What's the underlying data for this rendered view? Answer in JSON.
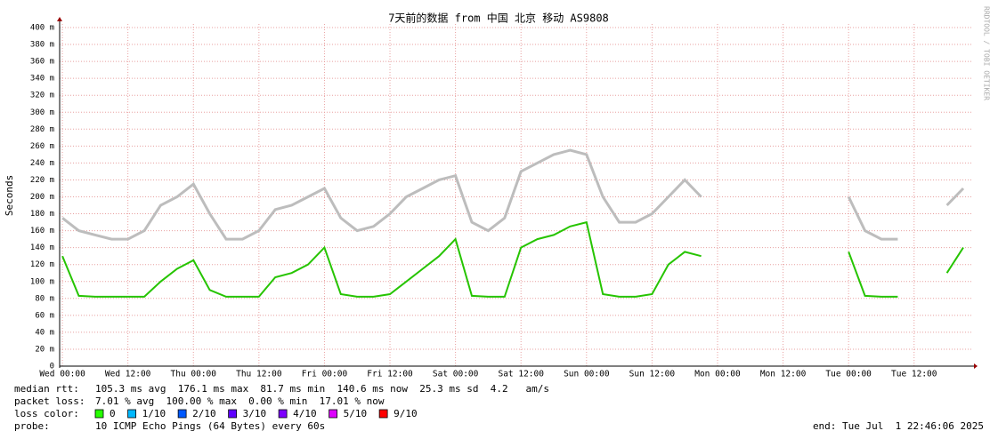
{
  "chart_data": {
    "type": "line",
    "title": "7天前的数据 from 中国 北京 移动 AS9808",
    "watermark": "RRDTOOL / TOBI OETIKER",
    "y_label": "Seconds",
    "ylim": [
      0,
      400
    ],
    "yticks": [
      0,
      {
        "value": 20,
        "label": "20 m"
      },
      {
        "value": 40,
        "label": "40 m"
      },
      {
        "value": 60,
        "label": "60 m"
      },
      {
        "value": 80,
        "label": "80 m"
      },
      {
        "value": 100,
        "label": "100 m"
      },
      {
        "value": 120,
        "label": "120 m"
      },
      {
        "value": 140,
        "label": "140 m"
      },
      {
        "value": 160,
        "label": "160 m"
      },
      {
        "value": 180,
        "label": "180 m"
      },
      {
        "value": 200,
        "label": "200 m"
      },
      {
        "value": 220,
        "label": "220 m"
      },
      {
        "value": 240,
        "label": "240 m"
      },
      {
        "value": 260,
        "label": "260 m"
      },
      {
        "value": 280,
        "label": "280 m"
      },
      {
        "value": 300,
        "label": "300 m"
      },
      {
        "value": 320,
        "label": "320 m"
      },
      {
        "value": 340,
        "label": "340 m"
      },
      {
        "value": 360,
        "label": "360 m"
      },
      {
        "value": 380,
        "label": "380 m"
      },
      {
        "value": 400,
        "label": "400 m"
      }
    ],
    "xlim": [
      -0.5,
      166.8
    ],
    "xticks": [
      {
        "value": 0,
        "label": "Wed 00:00"
      },
      {
        "value": 12,
        "label": "Wed 12:00"
      },
      {
        "value": 24,
        "label": "Thu 00:00"
      },
      {
        "value": 36,
        "label": "Thu 12:00"
      },
      {
        "value": 48,
        "label": "Fri 00:00"
      },
      {
        "value": 60,
        "label": "Fri 12:00"
      },
      {
        "value": 72,
        "label": "Sat 00:00"
      },
      {
        "value": 84,
        "label": "Sat 12:00"
      },
      {
        "value": 96,
        "label": "Sun 00:00"
      },
      {
        "value": 108,
        "label": "Sun 12:00"
      },
      {
        "value": 120,
        "label": "Mon 00:00"
      },
      {
        "value": 132,
        "label": "Mon 12:00"
      },
      {
        "value": 144,
        "label": "Tue 00:00"
      },
      {
        "value": 156,
        "label": "Tue 12:00"
      }
    ],
    "grid": true,
    "x": [
      0,
      3,
      6,
      9,
      12,
      15,
      18,
      21,
      24,
      27,
      30,
      33,
      36,
      39,
      42,
      45,
      48,
      51,
      54,
      57,
      60,
      63,
      66,
      69,
      72,
      75,
      78,
      81,
      84,
      87,
      90,
      93,
      96,
      99,
      102,
      105,
      108,
      111,
      114,
      117,
      120,
      123,
      126,
      129,
      132,
      135,
      138,
      141,
      144,
      147,
      150,
      153,
      156,
      159,
      162,
      165
    ],
    "series": [
      {
        "color": "#bdbdbd",
        "values": [
          175,
          160,
          155,
          150,
          150,
          160,
          190,
          200,
          215,
          180,
          150,
          150,
          160,
          185,
          190,
          200,
          210,
          175,
          160,
          165,
          180,
          200,
          210,
          220,
          225,
          170,
          160,
          175,
          230,
          240,
          250,
          255,
          250,
          200,
          170,
          170,
          180,
          200,
          220,
          200,
          null,
          null,
          null,
          null,
          null,
          null,
          null,
          null,
          200,
          160,
          150,
          150,
          null,
          null,
          190,
          210
        ]
      },
      {
        "color": "#26c400",
        "values": [
          130,
          83,
          82,
          82,
          82,
          82,
          100,
          115,
          125,
          90,
          82,
          82,
          82,
          105,
          110,
          120,
          140,
          85,
          82,
          82,
          85,
          100,
          115,
          130,
          150,
          83,
          82,
          82,
          140,
          150,
          155,
          165,
          170,
          85,
          82,
          82,
          85,
          120,
          135,
          130,
          null,
          null,
          null,
          null,
          null,
          null,
          null,
          null,
          135,
          83,
          82,
          82,
          null,
          null,
          110,
          140
        ]
      }
    ],
    "stats": [
      [
        "median rtt:",
        "105.3 ms avg  176.1 ms max  81.7 ms min  140.6 ms now  25.3 ms sd  4.2   am/s"
      ],
      [
        "packet loss:",
        "7.01 % avg  100.00 % max  0.00 % min  17.01 % now"
      ]
    ],
    "loss_legend": {
      "label": "loss color:",
      "items": [
        {
          "color": "#26ff00",
          "label": "0"
        },
        {
          "color": "#00b8ff",
          "label": "1/10"
        },
        {
          "color": "#0059ff",
          "label": "2/10"
        },
        {
          "color": "#5e00ff",
          "label": "3/10"
        },
        {
          "color": "#7e00ff",
          "label": "4/10"
        },
        {
          "color": "#dd00ff",
          "label": "5/10"
        },
        {
          "color": "#ff0000",
          "label": "9/10"
        }
      ]
    },
    "probe": [
      "probe:",
      "10 ICMP Echo Pings (64 Bytes) every 60s"
    ],
    "end": "end: Tue Jul  1 22:46:06 2025"
  }
}
